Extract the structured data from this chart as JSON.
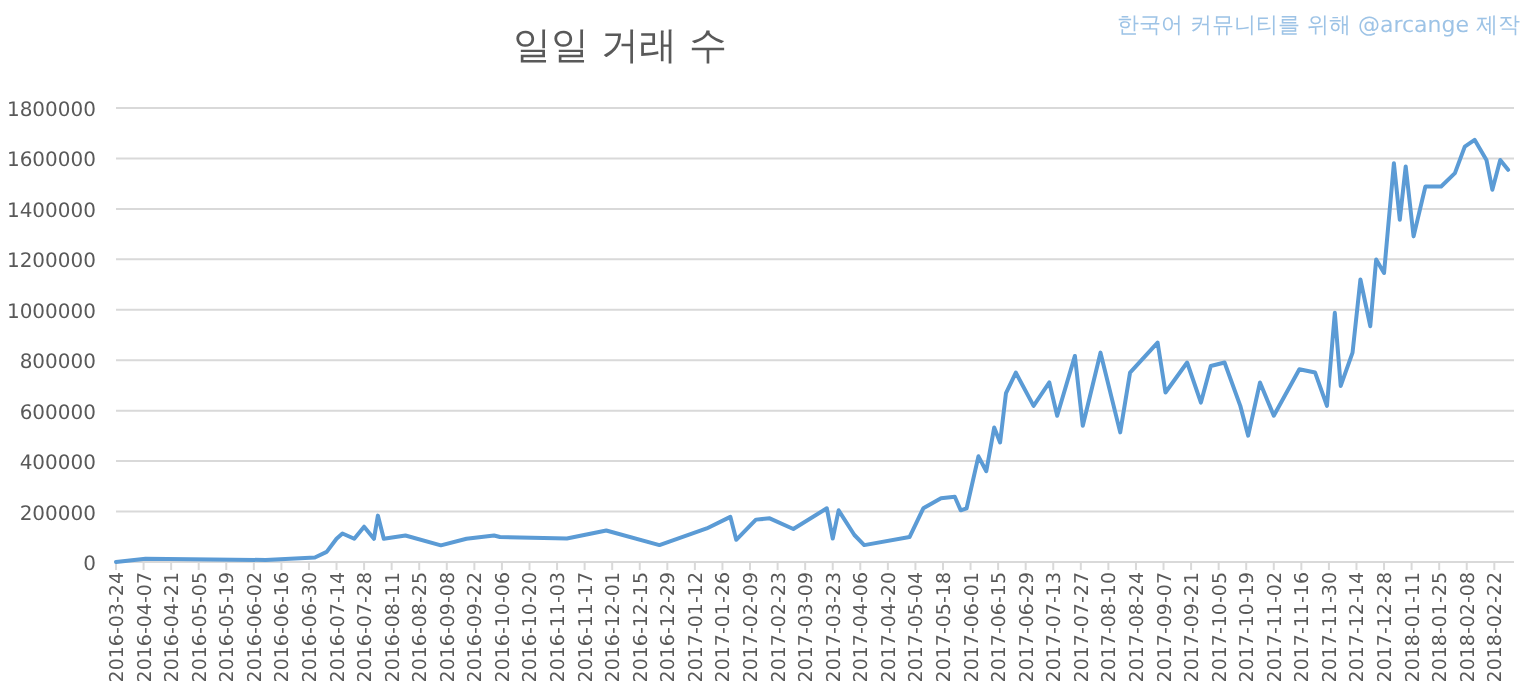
{
  "chart_data": {
    "type": "line",
    "title": "일일 거래 수",
    "annotations": [
      "한국어 커뮤니티를 위해 @arcange 제작"
    ],
    "x": [
      "2016-03-24",
      "2016-04-08",
      "2016-06-08",
      "2016-07-03",
      "2016-07-09",
      "2016-07-14",
      "2016-07-17",
      "2016-07-23",
      "2016-07-28",
      "2016-08-02",
      "2016-08-04",
      "2016-08-07",
      "2016-08-18",
      "2016-09-05",
      "2016-09-18",
      "2016-10-02",
      "2016-10-05",
      "2016-11-08",
      "2016-11-28",
      "2016-12-25",
      "2017-01-18",
      "2017-01-30",
      "2017-02-02",
      "2017-02-12",
      "2017-02-19",
      "2017-03-03",
      "2017-03-20",
      "2017-03-23",
      "2017-03-26",
      "2017-04-03",
      "2017-04-08",
      "2017-05-01",
      "2017-05-08",
      "2017-05-17",
      "2017-05-24",
      "2017-05-27",
      "2017-05-30",
      "2017-06-05",
      "2017-06-09",
      "2017-06-13",
      "2017-06-16",
      "2017-06-19",
      "2017-06-24",
      "2017-07-03",
      "2017-07-11",
      "2017-07-15",
      "2017-07-24",
      "2017-07-28",
      "2017-08-06",
      "2017-08-16",
      "2017-08-21",
      "2017-09-04",
      "2017-09-08",
      "2017-09-19",
      "2017-09-26",
      "2017-10-01",
      "2017-10-08",
      "2017-10-16",
      "2017-10-20",
      "2017-10-26",
      "2017-11-02",
      "2017-11-15",
      "2017-11-23",
      "2017-11-29",
      "2017-12-03",
      "2017-12-06",
      "2017-12-12",
      "2017-12-16",
      "2017-12-21",
      "2017-12-24",
      "2017-12-28",
      "2018-01-02",
      "2018-01-05",
      "2018-01-08",
      "2018-01-12",
      "2018-01-18",
      "2018-01-26",
      "2018-02-02",
      "2018-02-07",
      "2018-02-12",
      "2018-02-18",
      "2018-02-21",
      "2018-02-25",
      "2018-03-01"
    ],
    "series": [
      {
        "color": "#5b9bd5",
        "values": [
          0,
          13000,
          8000,
          18000,
          40000,
          92000,
          113000,
          92000,
          140000,
          92000,
          184000,
          92000,
          105000,
          66000,
          92000,
          105000,
          99000,
          93000,
          125000,
          67000,
          133000,
          179000,
          88000,
          168000,
          173000,
          131000,
          213000,
          93000,
          205000,
          107000,
          67000,
          99000,
          213000,
          253000,
          259000,
          205000,
          213000,
          419000,
          360000,
          533000,
          474000,
          670000,
          751000,
          619000,
          712000,
          580000,
          817000,
          540000,
          830000,
          514000,
          751000,
          870000,
          672000,
          791000,
          632000,
          777000,
          791000,
          619000,
          501000,
          712000,
          580000,
          764000,
          751000,
          619000,
          988000,
          698000,
          830000,
          1120000,
          935000,
          1199000,
          1146000,
          1581000,
          1357000,
          1568000,
          1291000,
          1489000,
          1489000,
          1542000,
          1647000,
          1674000,
          1594000,
          1476000,
          1594000,
          1555000
        ]
      }
    ],
    "xlim": [
      "2016-03-24",
      "2018-03-04"
    ],
    "xticks": [
      "2016-03-24",
      "2016-04-07",
      "2016-04-21",
      "2016-05-05",
      "2016-05-19",
      "2016-06-02",
      "2016-06-16",
      "2016-06-30",
      "2016-07-14",
      "2016-07-28",
      "2016-08-11",
      "2016-08-25",
      "2016-09-08",
      "2016-09-22",
      "2016-10-06",
      "2016-10-20",
      "2016-11-03",
      "2016-11-17",
      "2016-12-01",
      "2016-12-15",
      "2016-12-29",
      "2017-01-12",
      "2017-01-26",
      "2017-02-09",
      "2017-02-23",
      "2017-03-09",
      "2017-03-23",
      "2017-04-06",
      "2017-04-20",
      "2017-05-04",
      "2017-05-18",
      "2017-06-01",
      "2017-06-15",
      "2017-06-29",
      "2017-07-13",
      "2017-07-27",
      "2017-08-10",
      "2017-08-24",
      "2017-09-07",
      "2017-09-21",
      "2017-10-05",
      "2017-10-19",
      "2017-11-02",
      "2017-11-16",
      "2017-11-30",
      "2017-12-14",
      "2017-12-28",
      "2018-01-11",
      "2018-01-25",
      "2018-02-08",
      "2018-02-22"
    ],
    "ylim": [
      0,
      1800000
    ],
    "yticks": [
      0,
      200000,
      400000,
      600000,
      800000,
      1000000,
      1200000,
      1400000,
      1600000,
      1800000
    ],
    "grid": "y",
    "marker": "none",
    "line_style": "solid"
  }
}
